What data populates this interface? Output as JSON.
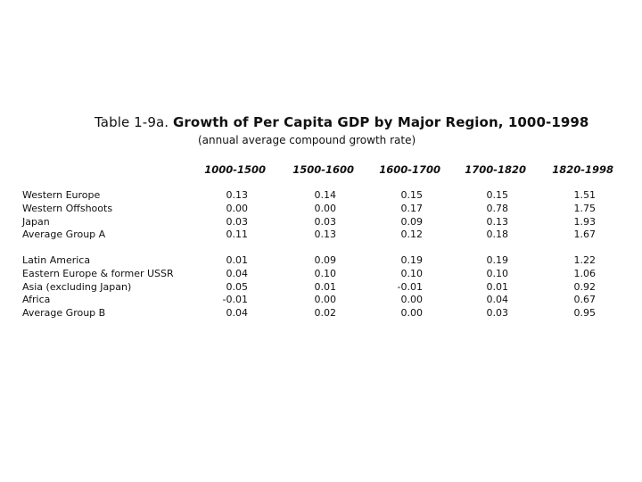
{
  "table": {
    "title_prefix": "Table 1-9a.",
    "title_main": "Growth of Per Capita GDP by Major Region, 1000-1998",
    "subtitle": "(annual average compound growth rate)",
    "columns": [
      "1000-1500",
      "1500-1600",
      "1600-1700",
      "1700-1820",
      "1820-1998"
    ],
    "group_a": [
      {
        "label": "Western Europe",
        "values": [
          "0.13",
          "0.14",
          "0.15",
          "0.15",
          "1.51"
        ]
      },
      {
        "label": "Western Offshoots",
        "values": [
          "0.00",
          "0.00",
          "0.17",
          "0.78",
          "1.75"
        ]
      },
      {
        "label": "Japan",
        "values": [
          "0.03",
          "0.03",
          "0.09",
          "0.13",
          "1.93"
        ]
      },
      {
        "label": "Average Group A",
        "values": [
          "0.11",
          "0.13",
          "0.12",
          "0.18",
          "1.67"
        ]
      }
    ],
    "group_b": [
      {
        "label": "Latin America",
        "values": [
          "0.01",
          "0.09",
          "0.19",
          "0.19",
          "1.22"
        ]
      },
      {
        "label": "Eastern Europe & former USSR",
        "values": [
          "0.04",
          "0.10",
          "0.10",
          "0.10",
          "1.06"
        ]
      },
      {
        "label": "Asia (excluding Japan)",
        "values": [
          "0.05",
          "0.01",
          "-0.01",
          "0.01",
          "0.92"
        ]
      },
      {
        "label": "Africa",
        "values": [
          "-0.01",
          "0.00",
          "0.00",
          "0.04",
          "0.67"
        ]
      },
      {
        "label": "Average Group B",
        "values": [
          "0.04",
          "0.02",
          "0.00",
          "0.03",
          "0.95"
        ]
      }
    ]
  }
}
